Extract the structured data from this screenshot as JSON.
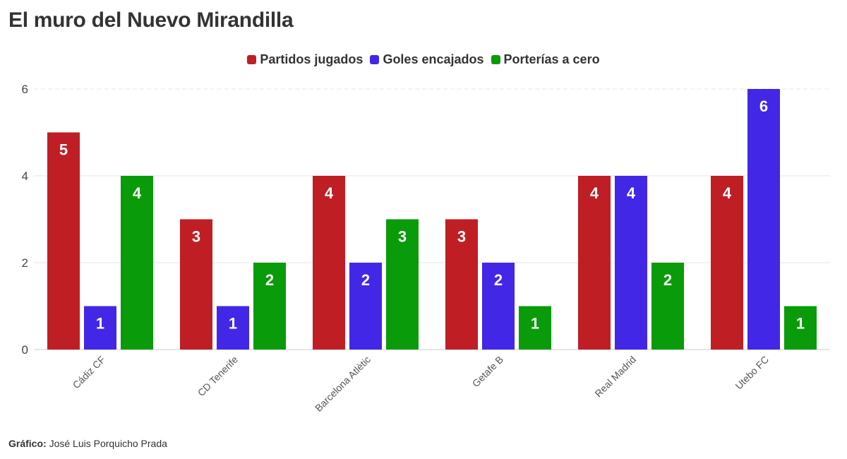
{
  "chart_data": {
    "type": "bar",
    "title": "El muro del Nuevo Mirandilla",
    "xlabel": "",
    "ylabel": "",
    "ylim": [
      0,
      6
    ],
    "yticks": [
      0,
      2,
      4,
      6
    ],
    "grid": true,
    "legend_position": "top-center",
    "categories": [
      "Cádiz CF",
      "CD Tenerife",
      "Barcelona Atlètic",
      "Getafe B",
      "Real Madrid",
      "Utebo FC"
    ],
    "series": [
      {
        "name": "Partidos jugados",
        "color": "#bf1e24",
        "values": [
          5,
          3,
          4,
          3,
          4,
          4
        ]
      },
      {
        "name": "Goles encajados",
        "color": "#4327e6",
        "values": [
          1,
          1,
          2,
          2,
          4,
          6
        ]
      },
      {
        "name": "Porterías a cero",
        "color": "#0a9b0a",
        "values": [
          4,
          2,
          3,
          1,
          2,
          1
        ]
      }
    ]
  },
  "credit": {
    "label": "Gráfico:",
    "author": "José Luis Porquicho Prada"
  }
}
